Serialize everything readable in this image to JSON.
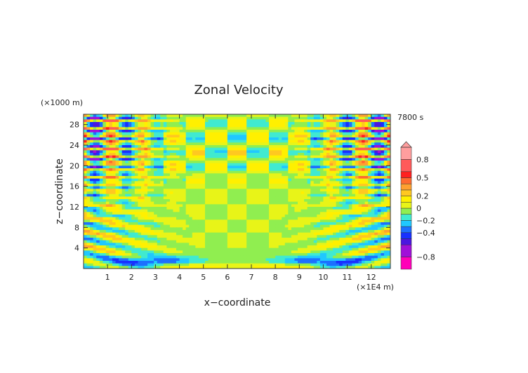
{
  "chart_data": {
    "type": "heatmap",
    "title": "Zonal Velocity",
    "xlabel": "x−coordinate",
    "ylabel": "z−coordinate",
    "x_unit": "(×1E4 m)",
    "y_unit": "(×1000 m)",
    "time_label": "7800 s",
    "xlim": [
      0,
      12.8
    ],
    "ylim": [
      0,
      30
    ],
    "x_ticks": [
      "1",
      "2",
      "3",
      "4",
      "5",
      "6",
      "7",
      "8",
      "9",
      "10",
      "11",
      "12"
    ],
    "y_ticks": [
      "4",
      "8",
      "12",
      "16",
      "20",
      "24",
      "28"
    ],
    "colorbar": {
      "labels": [
        "0.8",
        "0.5",
        "0.2",
        "0",
        "−0.2",
        "−0.4",
        "−0.8"
      ],
      "label_values": [
        0.8,
        0.5,
        0.2,
        0,
        -0.2,
        -0.4,
        -0.8
      ],
      "levels": [
        -1.0,
        -0.8,
        -0.6,
        -0.5,
        -0.4,
        -0.3,
        -0.2,
        -0.1,
        0,
        0.1,
        0.2,
        0.3,
        0.4,
        0.5,
        0.6,
        0.8,
        1.0
      ],
      "colors": [
        "#ff00b8",
        "#a010d8",
        "#4b16e0",
        "#1830ff",
        "#1c70ff",
        "#20c8ff",
        "#40ead0",
        "#90ee50",
        "#e8f418",
        "#fff000",
        "#ffc820",
        "#ffa030",
        "#ff6a30",
        "#ff2020",
        "#ff5a5a",
        "#ff9e9e"
      ]
    },
    "grid": false
  }
}
